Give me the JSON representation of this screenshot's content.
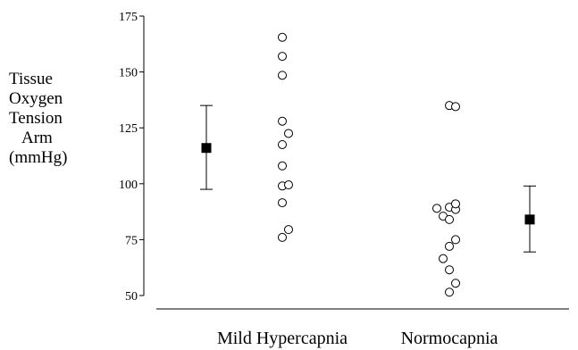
{
  "chart_data": {
    "type": "scatter",
    "title": "",
    "ylabel_lines": [
      "Tissue",
      "Oxygen",
      "Tension",
      "Arm",
      "(mmHg)"
    ],
    "categories": [
      "Mild Hypercapnia",
      "Normocapnia"
    ],
    "ylim": [
      50,
      175
    ],
    "yticks": [
      50,
      75,
      100,
      125,
      150,
      175
    ],
    "grid": false,
    "groups": [
      {
        "category": "Mild Hypercapnia",
        "points": [
          {
            "offset": 0.0,
            "y": 165.5
          },
          {
            "offset": 0.0,
            "y": 157
          },
          {
            "offset": 0.0,
            "y": 148.5
          },
          {
            "offset": 0.0,
            "y": 128
          },
          {
            "offset": 0.0,
            "y": 117.5
          },
          {
            "offset": 0.5,
            "y": 122.5
          },
          {
            "offset": 0.0,
            "y": 108
          },
          {
            "offset": 0.0,
            "y": 99
          },
          {
            "offset": 0.5,
            "y": 99.5
          },
          {
            "offset": 0.0,
            "y": 91.5
          },
          {
            "offset": 0.0,
            "y": 76
          },
          {
            "offset": 0.5,
            "y": 79.5
          }
        ],
        "summary": {
          "position": "left",
          "mean": 116,
          "upper": 135,
          "lower": 97.5
        }
      },
      {
        "category": "Normocapnia",
        "points": [
          {
            "offset": 0.0,
            "y": 135
          },
          {
            "offset": 0.5,
            "y": 134.5
          },
          {
            "offset": -1.0,
            "y": 89
          },
          {
            "offset": -0.5,
            "y": 85.5
          },
          {
            "offset": 0.0,
            "y": 89.5
          },
          {
            "offset": 0.0,
            "y": 84
          },
          {
            "offset": 0.5,
            "y": 88.5
          },
          {
            "offset": 0.5,
            "y": 91
          },
          {
            "offset": 0.0,
            "y": 72
          },
          {
            "offset": 0.5,
            "y": 75
          },
          {
            "offset": -0.5,
            "y": 66.5
          },
          {
            "offset": 0.0,
            "y": 61.5
          },
          {
            "offset": 0.5,
            "y": 55.5
          },
          {
            "offset": 0.0,
            "y": 51.5
          }
        ],
        "summary": {
          "position": "right",
          "mean": 84,
          "upper": 99,
          "lower": 69.5
        }
      }
    ]
  }
}
